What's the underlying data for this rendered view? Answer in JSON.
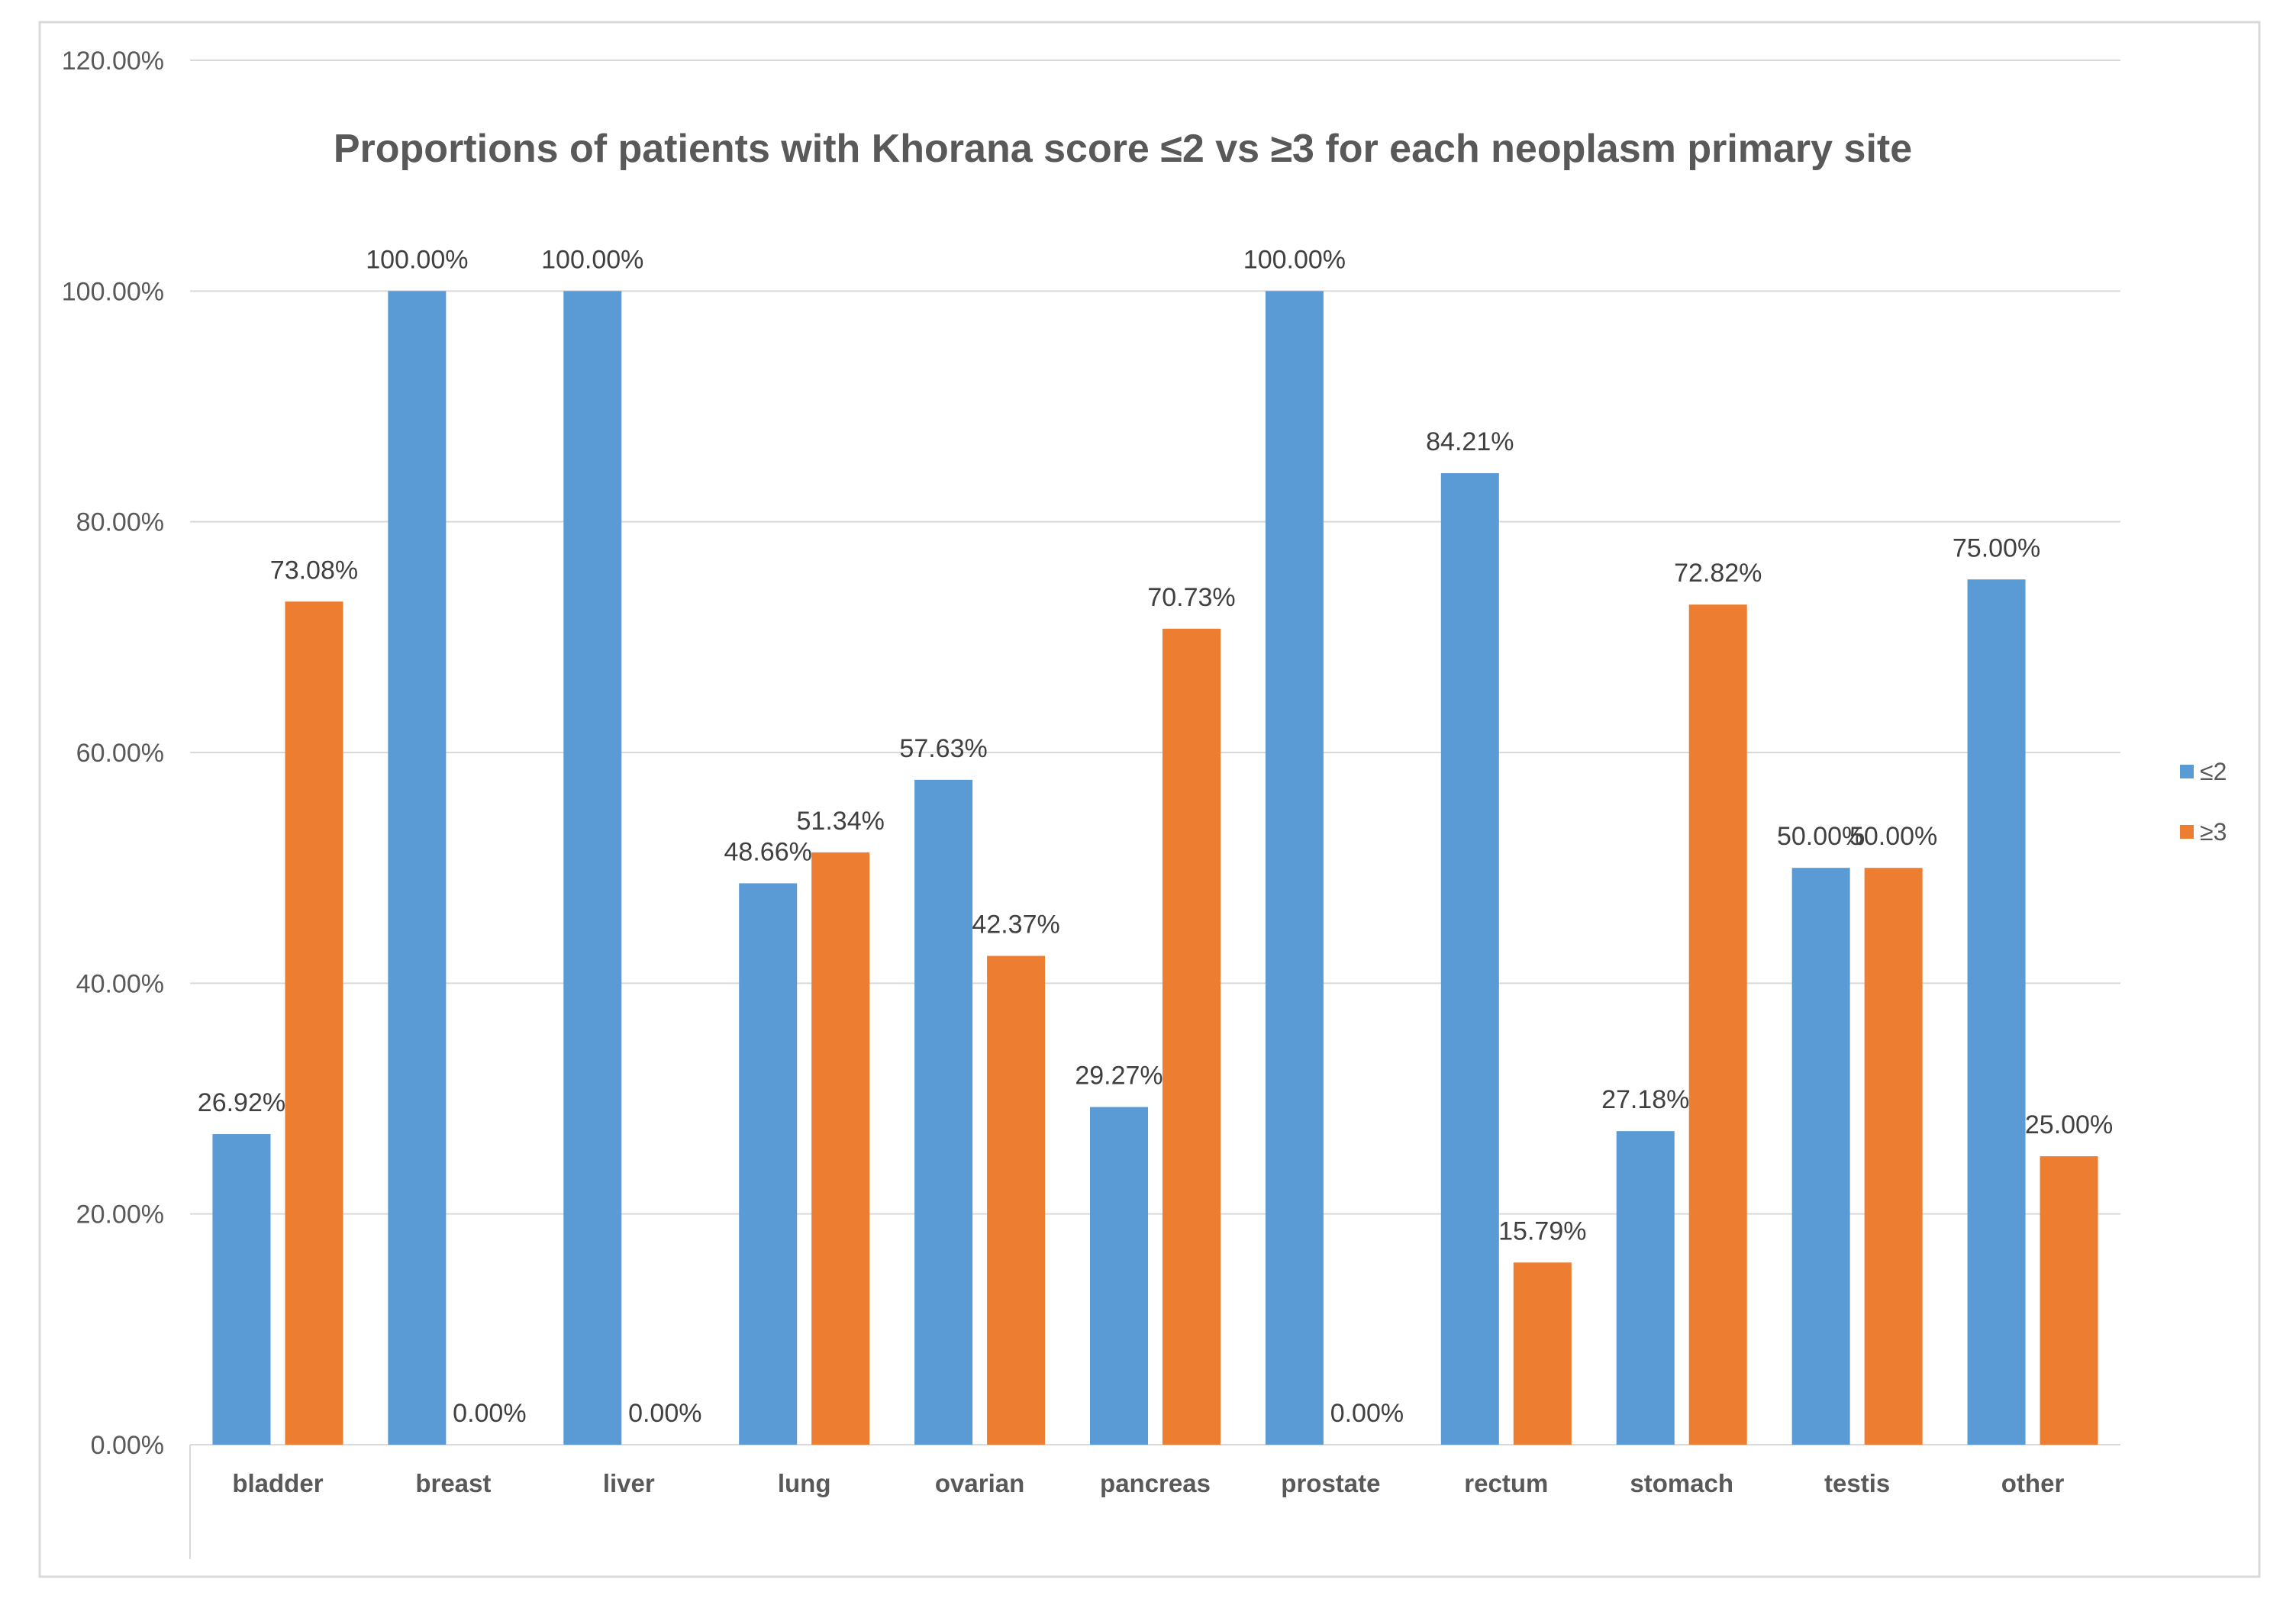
{
  "chart_data": {
    "type": "bar",
    "title": "Proportions of patients with Khorana score ≤2 vs ≥3 for each neoplasm primary site",
    "xlabel": "",
    "ylabel": "",
    "ylim": [
      0,
      120
    ],
    "yticks": [
      0,
      20,
      40,
      60,
      80,
      100,
      120
    ],
    "ytick_labels": [
      "0.00%",
      "20.00%",
      "40.00%",
      "60.00%",
      "80.00%",
      "100.00%",
      "120.00%"
    ],
    "grid": true,
    "legend_position": "right",
    "categories": [
      "bladder",
      "breast",
      "liver",
      "lung",
      "ovarian",
      "pancreas",
      "prostate",
      "rectum",
      "stomach",
      "testis",
      "other"
    ],
    "series": [
      {
        "name": "≤2",
        "color": "#5B9BD5",
        "values": [
          26.92,
          100,
          100,
          48.66,
          57.63,
          29.27,
          100,
          84.21,
          27.18,
          50,
          75
        ],
        "labels": [
          "26.92%",
          "100.00%",
          "100.00%",
          "48.66%",
          "57.63%",
          "29.27%",
          "100.00%",
          "84.21%",
          "27.18%",
          "50.00%",
          "75.00%"
        ]
      },
      {
        "name": "≥3",
        "color": "#ED7D31",
        "values": [
          73.08,
          0,
          0,
          51.34,
          42.37,
          70.73,
          0,
          15.79,
          72.82,
          50,
          25
        ],
        "labels": [
          "73.08%",
          "0.00%",
          "0.00%",
          "51.34%",
          "42.37%",
          "70.73%",
          "0.00%",
          "15.79%",
          "72.82%",
          "50.00%",
          "25.00%"
        ]
      }
    ]
  }
}
